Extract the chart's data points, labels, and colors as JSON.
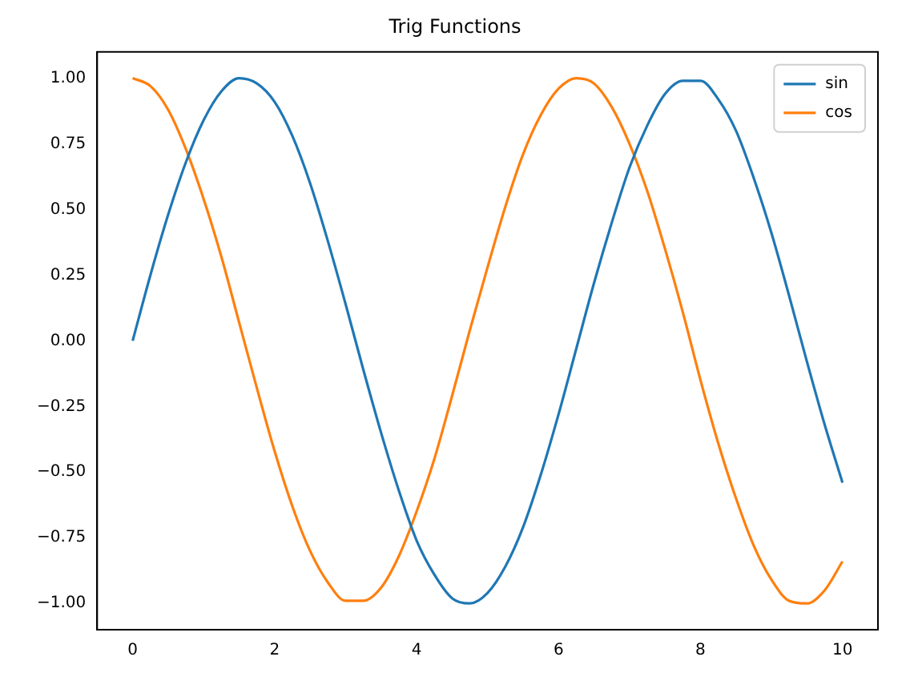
{
  "chart_data": {
    "type": "line",
    "title": "Trig Functions",
    "x": [
      0,
      0.25,
      0.5,
      0.75,
      1,
      1.25,
      1.5,
      1.75,
      2,
      2.25,
      2.5,
      2.75,
      3,
      3.25,
      3.5,
      3.75,
      4,
      4.25,
      4.5,
      4.75,
      5,
      5.25,
      5.5,
      5.75,
      6,
      6.25,
      6.5,
      6.75,
      7,
      7.25,
      7.5,
      7.75,
      8,
      8.25,
      8.5,
      8.75,
      9,
      9.25,
      9.5,
      9.75,
      10
    ],
    "series": [
      {
        "name": "sin",
        "color": "#1f77b4",
        "values": [
          0,
          0.25,
          0.48,
          0.68,
          0.84,
          0.95,
          1.0,
          0.98,
          0.91,
          0.78,
          0.6,
          0.38,
          0.14,
          -0.11,
          -0.35,
          -0.57,
          -0.76,
          -0.89,
          -0.98,
          -1.0,
          -0.96,
          -0.86,
          -0.71,
          -0.51,
          -0.28,
          -0.03,
          0.22,
          0.45,
          0.66,
          0.82,
          0.94,
          0.99,
          0.99,
          0.92,
          0.8,
          0.62,
          0.41,
          0.17,
          -0.08,
          -0.32,
          -0.54
        ]
      },
      {
        "name": "cos",
        "color": "#ff7f0e",
        "values": [
          1.0,
          0.97,
          0.88,
          0.73,
          0.54,
          0.32,
          0.07,
          -0.18,
          -0.42,
          -0.63,
          -0.8,
          -0.92,
          -0.99,
          -0.99,
          -0.94,
          -0.82,
          -0.65,
          -0.45,
          -0.21,
          0.04,
          0.28,
          0.51,
          0.71,
          0.86,
          0.96,
          1.0,
          0.98,
          0.89,
          0.75,
          0.57,
          0.35,
          0.11,
          -0.15,
          -0.39,
          -0.6,
          -0.78,
          -0.91,
          -0.99,
          -1.0,
          -0.95,
          -0.84
        ]
      }
    ],
    "xlim": [
      -0.5,
      10.5
    ],
    "xticks": [
      0,
      2,
      4,
      6,
      8,
      10
    ],
    "ylim": [
      -1.1,
      1.1
    ],
    "yticks": [
      {
        "value": -1,
        "label": "−1.00"
      },
      {
        "value": -0.75,
        "label": "−0.75"
      },
      {
        "value": -0.5,
        "label": "−0.50"
      },
      {
        "value": -0.25,
        "label": "−0.25"
      },
      {
        "value": 0,
        "label": "0.00"
      },
      {
        "value": 0.25,
        "label": "0.25"
      },
      {
        "value": 0.5,
        "label": "0.50"
      },
      {
        "value": 0.75,
        "label": "0.75"
      },
      {
        "value": 1,
        "label": "1.00"
      }
    ],
    "grid": false,
    "legend": "top right",
    "marker": "none",
    "line_style": "solid"
  }
}
